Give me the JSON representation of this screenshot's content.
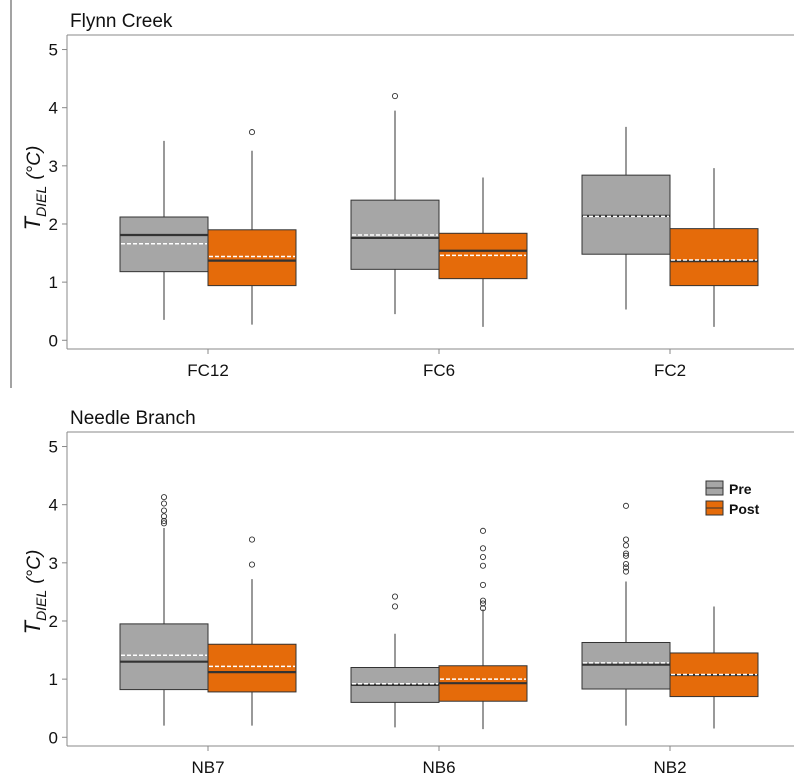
{
  "colors": {
    "pre": "#a6a6a6",
    "post": "#e56b0a",
    "median": "#333333",
    "mean": "#ffffff",
    "axis": "#888888",
    "text": "#111111"
  },
  "legend": {
    "pre_label": "Pre",
    "post_label": "Post",
    "placement": "right, inside bottom panel"
  },
  "chart_data": [
    {
      "type": "box",
      "title": "Flynn Creek",
      "ylabel_main": "T",
      "ylabel_sub": "DIEL",
      "ylabel_units": "(°C)",
      "ylim": [
        -0.15,
        5.25
      ],
      "yticks": [
        0,
        1,
        2,
        3,
        4,
        5
      ],
      "grid": false,
      "categories": [
        "FC12",
        "FC6",
        "FC2"
      ],
      "series": [
        {
          "name": "Pre",
          "boxes": [
            {
              "min": 0.35,
              "q1": 1.18,
              "median": 1.81,
              "q3": 2.12,
              "max": 3.43,
              "mean": 1.66,
              "outliers": []
            },
            {
              "min": 0.45,
              "q1": 1.22,
              "median": 1.76,
              "q3": 2.41,
              "max": 3.95,
              "mean": 1.81,
              "outliers": [
                4.2
              ]
            },
            {
              "min": 0.53,
              "q1": 1.48,
              "median": 2.14,
              "q3": 2.84,
              "max": 3.67,
              "mean": 2.13,
              "outliers": []
            }
          ]
        },
        {
          "name": "Post",
          "boxes": [
            {
              "min": 0.27,
              "q1": 0.94,
              "median": 1.37,
              "q3": 1.9,
              "max": 3.26,
              "mean": 1.44,
              "outliers": [
                3.58
              ]
            },
            {
              "min": 0.23,
              "q1": 1.06,
              "median": 1.54,
              "q3": 1.84,
              "max": 2.8,
              "mean": 1.46,
              "outliers": []
            },
            {
              "min": 0.23,
              "q1": 0.94,
              "median": 1.36,
              "q3": 1.92,
              "max": 2.96,
              "mean": 1.38,
              "outliers": []
            }
          ]
        }
      ]
    },
    {
      "type": "box",
      "title": "Needle Branch",
      "ylabel_main": "T",
      "ylabel_sub": "DIEL",
      "ylabel_units": "(°C)",
      "ylim": [
        -0.15,
        5.25
      ],
      "yticks": [
        0,
        1,
        2,
        3,
        4,
        5
      ],
      "grid": false,
      "categories": [
        "NB7",
        "NB6",
        "NB2"
      ],
      "series": [
        {
          "name": "Pre",
          "boxes": [
            {
              "min": 0.2,
              "q1": 0.82,
              "median": 1.3,
              "q3": 1.95,
              "max": 3.6,
              "mean": 1.41,
              "outliers": [
                3.68,
                3.72,
                3.8,
                3.9,
                4.02,
                4.13
              ]
            },
            {
              "min": 0.17,
              "q1": 0.6,
              "median": 0.9,
              "q3": 1.2,
              "max": 1.78,
              "mean": 0.92,
              "outliers": [
                2.25,
                2.42
              ]
            },
            {
              "min": 0.2,
              "q1": 0.83,
              "median": 1.25,
              "q3": 1.63,
              "max": 2.68,
              "mean": 1.28,
              "outliers": [
                2.85,
                2.92,
                2.98,
                3.12,
                3.16,
                3.3,
                3.4,
                3.98
              ]
            }
          ]
        },
        {
          "name": "Post",
          "boxes": [
            {
              "min": 0.2,
              "q1": 0.78,
              "median": 1.12,
              "q3": 1.6,
              "max": 2.72,
              "mean": 1.22,
              "outliers": [
                2.97,
                3.4
              ]
            },
            {
              "min": 0.14,
              "q1": 0.62,
              "median": 0.93,
              "q3": 1.23,
              "max": 2.2,
              "mean": 1.0,
              "outliers": [
                2.22,
                2.3,
                2.35,
                2.62,
                2.95,
                3.1,
                3.25,
                3.55
              ]
            },
            {
              "min": 0.15,
              "q1": 0.7,
              "median": 1.07,
              "q3": 1.45,
              "max": 2.25,
              "mean": 1.08,
              "outliers": []
            }
          ]
        }
      ]
    }
  ]
}
